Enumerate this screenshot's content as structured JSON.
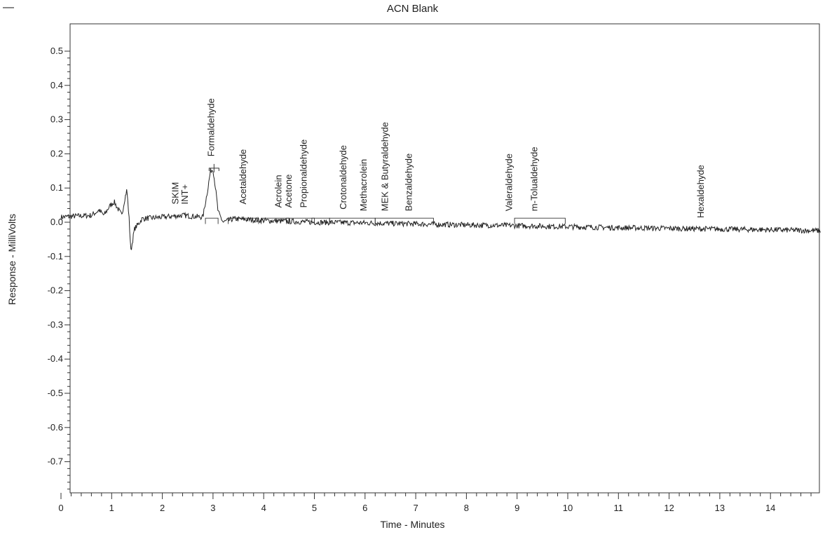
{
  "header_mark": "—",
  "chart_data": {
    "type": "line",
    "title": "ACN Blank",
    "xlabel": "Time - Minutes",
    "ylabel": "Response - MilliVolts",
    "xlim": [
      0,
      15
    ],
    "ylim": [
      -0.8,
      0.58
    ],
    "xticks": [
      "0",
      "1",
      "2",
      "3",
      "4",
      "5",
      "6",
      "7",
      "8",
      "9",
      "10",
      "11",
      "12",
      "13",
      "14"
    ],
    "yticks": [
      "0.5",
      "0.4",
      "0.3",
      "0.2",
      "0.1",
      "0.0",
      "-0.1",
      "-0.2",
      "-0.3",
      "-0.4",
      "-0.5",
      "-0.6",
      "-0.7"
    ],
    "grid": false,
    "legend": "none",
    "trace_color": "#222222",
    "series": [
      {
        "x": [
          0,
          0.3,
          0.6,
          0.75,
          0.85,
          0.95,
          1.05,
          1.12,
          1.2,
          1.26,
          1.3,
          1.34,
          1.38,
          1.45,
          1.6,
          2.0,
          2.4,
          2.8,
          2.9,
          2.95,
          3.0,
          3.05,
          3.1,
          3.2,
          3.4,
          4.0,
          5.0,
          6.0,
          7.0,
          8.0,
          9.0,
          10.0,
          11.0,
          12.0,
          13.0,
          14.0,
          15.0
        ],
        "y": [
          0.015,
          0.018,
          0.02,
          0.035,
          0.02,
          0.045,
          0.06,
          0.04,
          0.02,
          0.07,
          0.095,
          0.02,
          -0.085,
          -0.02,
          0.01,
          0.015,
          0.02,
          0.015,
          0.1,
          0.15,
          0.155,
          0.1,
          0.03,
          0.0,
          0.01,
          0.005,
          0.0,
          -0.002,
          -0.005,
          -0.008,
          -0.01,
          -0.013,
          -0.016,
          -0.018,
          -0.02,
          -0.022,
          -0.025
        ]
      }
    ],
    "annotations": [
      {
        "label": "SKIM",
        "x": 2.32,
        "y": 0.04
      },
      {
        "label": "INT+",
        "x": 2.5,
        "y": 0.04
      },
      {
        "label": "Formaldehyde",
        "x": 3.02,
        "y": 0.18
      },
      {
        "label": "Acetaldehyde",
        "x": 3.65,
        "y": 0.04
      },
      {
        "label": "Acrolein",
        "x": 4.35,
        "y": 0.03
      },
      {
        "label": "Acetone",
        "x": 4.55,
        "y": 0.03
      },
      {
        "label": "Propionaldehyde",
        "x": 4.85,
        "y": 0.03
      },
      {
        "label": "Crotonaldehyde",
        "x": 5.63,
        "y": 0.025
      },
      {
        "label": "Methacrolein",
        "x": 6.03,
        "y": 0.02
      },
      {
        "label": "MEK & Butyraldehyde",
        "x": 6.45,
        "y": 0.02
      },
      {
        "label": "Benzaldehyde",
        "x": 6.92,
        "y": 0.02
      },
      {
        "label": "Valeraldehyde",
        "x": 8.9,
        "y": 0.02
      },
      {
        "label": "m-Tolualdehyde",
        "x": 9.4,
        "y": 0.02
      },
      {
        "label": "Hexaldehyde",
        "x": 12.68,
        "y": 0.0
      }
    ],
    "integration_brackets": [
      [
        2.85,
        3.1
      ],
      [
        3.3,
        3.9
      ],
      [
        3.95,
        4.5
      ],
      [
        4.45,
        5.0
      ],
      [
        4.95,
        5.3
      ],
      [
        5.3,
        6.2
      ],
      [
        6.2,
        7.35
      ],
      [
        8.95,
        9.95
      ]
    ]
  }
}
